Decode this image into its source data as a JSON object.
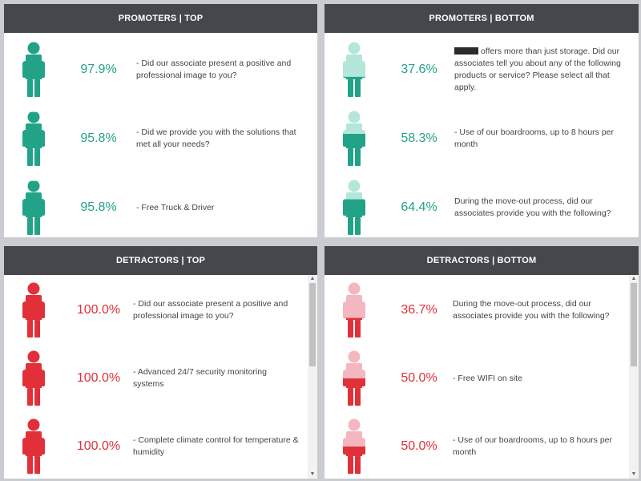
{
  "colors": {
    "promoter_dark": "#22a387",
    "promoter_light": "#b4e6d9",
    "detractor_dark": "#e1303a",
    "detractor_light": "#f4b7bf",
    "header_bg": "#46474d"
  },
  "icons": {
    "person": "person-icon",
    "scroll_up": "▲",
    "scroll_down": "▼"
  },
  "promoters_top": {
    "title": "PROMOTERS | TOP",
    "rows": [
      {
        "value": "97.9%",
        "text": "- Did our associate present a positive and professional image to you?",
        "fill_level": 0.979
      },
      {
        "value": "95.8%",
        "text": "- Did we provide you with the solutions that met all your needs?",
        "fill_level": 0.958
      },
      {
        "value": "95.8%",
        "text": "- Free Truck & Driver",
        "fill_level": 0.958
      }
    ]
  },
  "promoters_bottom": {
    "title": "PROMOTERS | BOTTOM",
    "rows": [
      {
        "value": "37.6%",
        "text": "offers more than just storage. Did our associates tell you about any of the following products or service? Please select all that apply.",
        "fill_level": 0.376,
        "redacted": true
      },
      {
        "value": "58.3%",
        "text": "- Use of our boardrooms, up to 8 hours per month",
        "fill_level": 0.583
      },
      {
        "value": "64.4%",
        "text": "During the move-out process, did our associates provide you with the following?",
        "fill_level": 0.644
      }
    ]
  },
  "detractors_top": {
    "title": "DETRACTORS | TOP",
    "rows": [
      {
        "value": "100.0%",
        "text": "- Did our associate present a positive and professional image to you?",
        "fill_level": 1.0
      },
      {
        "value": "100.0%",
        "text": "- Advanced 24/7 security monitoring systems",
        "fill_level": 1.0
      },
      {
        "value": "100.0%",
        "text": "- Complete climate control for temperature & humidity",
        "fill_level": 1.0
      }
    ]
  },
  "detractors_bottom": {
    "title": "DETRACTORS | BOTTOM",
    "rows": [
      {
        "value": "36.7%",
        "text": "During the move-out process, did our associates provide you with the following?",
        "fill_level": 0.367
      },
      {
        "value": "50.0%",
        "text": "- Free WIFI on site",
        "fill_level": 0.5
      },
      {
        "value": "50.0%",
        "text": "- Use of our boardrooms, up to 8 hours per month",
        "fill_level": 0.5
      }
    ]
  }
}
